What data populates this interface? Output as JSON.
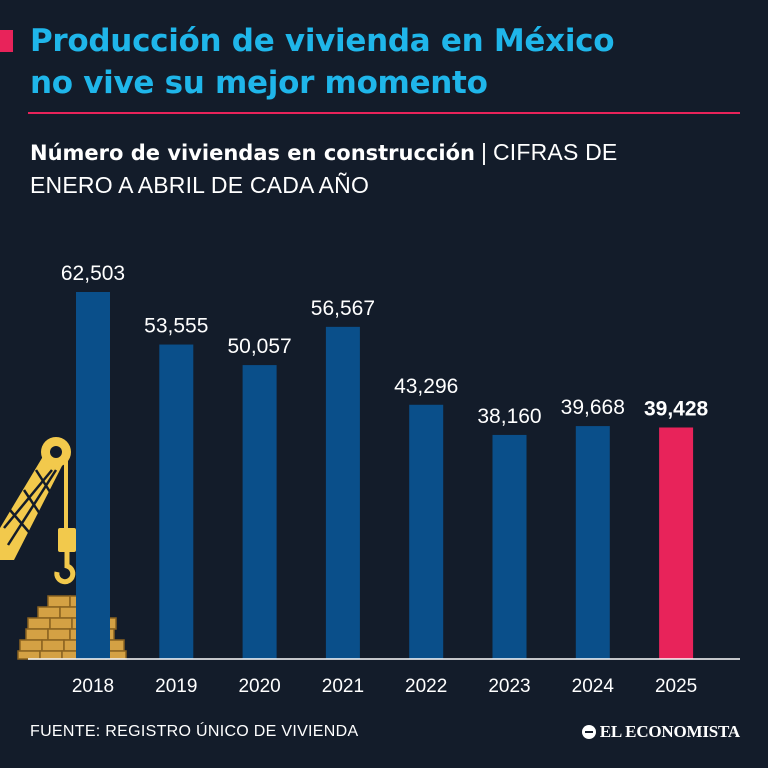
{
  "header": {
    "title_line1": "Producción de vivienda en México",
    "title_line2": "no vive su mejor momento"
  },
  "subtitle": {
    "strong": "Número de viviendas en construcción",
    "separator": "|",
    "light_line1": "CIFRAS DE",
    "light_line2": "ENERO A ABRIL DE CADA AÑO"
  },
  "chart_data": {
    "type": "bar",
    "categories": [
      "2018",
      "2019",
      "2020",
      "2021",
      "2022",
      "2023",
      "2024",
      "2025"
    ],
    "values": [
      62503,
      53555,
      50057,
      56567,
      43296,
      38160,
      39668,
      39428
    ],
    "data_labels": [
      "62,503",
      "53,555",
      "50,057",
      "56,567",
      "43,296",
      "38,160",
      "39,668",
      "39,428"
    ],
    "highlight_index": 7,
    "ylim": [
      0,
      62503
    ],
    "grid": false,
    "colors": {
      "bar": "#0a4f8a",
      "highlight": "#e8235a",
      "label": "#ffffff",
      "axis": "#ffffff"
    }
  },
  "illustration": "crane-bricks-icon",
  "footer": {
    "source": "FUENTE: REGISTRO ÚNICO DE VIVIENDA",
    "logo": "EL ECONOMISTA"
  },
  "colors": {
    "background": "#131c2a",
    "title": "#1fb6ea",
    "accent": "#e8235a"
  }
}
